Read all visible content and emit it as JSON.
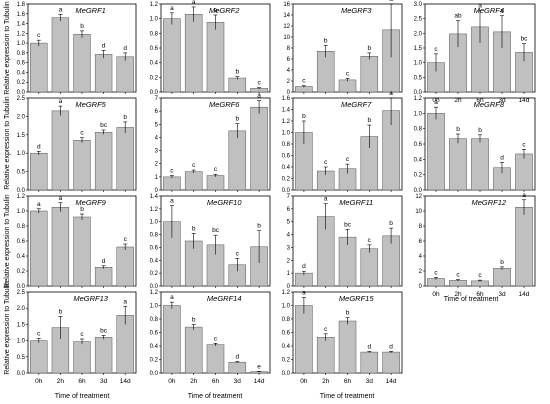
{
  "y_axis_label": "Relative expression to Tubulin",
  "x_axis_label": "Time of treatment",
  "chart_data": [
    {
      "type": "bar",
      "title": "MeGRF1",
      "categories": [
        "0h",
        "2h",
        "6h",
        "3d",
        "14d"
      ],
      "values": [
        1.0,
        1.52,
        1.18,
        0.77,
        0.72
      ],
      "errors": [
        0.06,
        0.07,
        0.07,
        0.08,
        0.08
      ],
      "letters": [
        "c",
        "a",
        "b",
        "d",
        "d"
      ],
      "ylim": [
        0,
        1.8
      ],
      "yticks": [
        "0.0",
        "0.2",
        "0.4",
        "0.6",
        "0.8",
        "1.0",
        "1.2",
        "1.4",
        "1.6",
        "1.8"
      ],
      "show_x_labels": false
    },
    {
      "type": "bar",
      "title": "MeGRF2",
      "categories": [
        "0h",
        "2h",
        "6h",
        "3d",
        "14d"
      ],
      "values": [
        1.0,
        1.06,
        0.95,
        0.19,
        0.05
      ],
      "errors": [
        0.08,
        0.1,
        0.1,
        0.02,
        0.01
      ],
      "letters": [
        "a",
        "a",
        "a",
        "b",
        "c"
      ],
      "ylim": [
        0,
        1.2
      ],
      "yticks": [
        "0.0",
        "0.2",
        "0.4",
        "0.6",
        "0.8",
        "1.0",
        "1.2"
      ],
      "show_x_labels": false
    },
    {
      "type": "bar",
      "title": "MeGRF3",
      "categories": [
        "0h",
        "2h",
        "6h",
        "3d",
        "14d"
      ],
      "values": [
        1.0,
        7.4,
        2.2,
        6.5,
        11.3
      ],
      "errors": [
        0.15,
        1.1,
        0.3,
        0.6,
        5.0
      ],
      "letters": [
        "c",
        "b",
        "c",
        "b",
        "a"
      ],
      "ylim": [
        0,
        16
      ],
      "yticks": [
        "0",
        "2",
        "4",
        "6",
        "8",
        "10",
        "12",
        "14",
        "16"
      ],
      "show_x_labels": false
    },
    {
      "type": "bar",
      "title": "MeGRF4",
      "categories": [
        "0h",
        "2h",
        "6h",
        "3d",
        "14d"
      ],
      "values": [
        1.0,
        1.98,
        2.22,
        2.05,
        1.35
      ],
      "errors": [
        0.3,
        0.45,
        0.55,
        0.55,
        0.3
      ],
      "letters": [
        "c",
        "ab",
        "a",
        "a",
        "bc"
      ],
      "ylim": [
        0,
        3.0
      ],
      "yticks": [
        "0.0",
        "0.5",
        "1.0",
        "1.5",
        "2.0",
        "2.5",
        "3.0"
      ],
      "show_x_labels": true
    },
    {
      "type": "bar",
      "title": "MeGRF5",
      "categories": [
        "0h",
        "2h",
        "6h",
        "3d",
        "14d"
      ],
      "values": [
        1.0,
        2.15,
        1.35,
        1.57,
        1.7
      ],
      "errors": [
        0.05,
        0.13,
        0.07,
        0.06,
        0.15
      ],
      "letters": [
        "d",
        "a",
        "c",
        "bc",
        "b"
      ],
      "ylim": [
        0,
        2.5
      ],
      "yticks": [
        "0.0",
        "0.5",
        "1.0",
        "1.5",
        "2.0",
        "2.5"
      ],
      "show_x_labels": false
    },
    {
      "type": "bar",
      "title": "MeGRF6",
      "categories": [
        "0h",
        "2h",
        "6h",
        "3d",
        "14d"
      ],
      "values": [
        1.0,
        1.4,
        1.1,
        4.5,
        6.3
      ],
      "errors": [
        0.1,
        0.12,
        0.1,
        0.55,
        0.5
      ],
      "letters": [
        "c",
        "c",
        "c",
        "b",
        "a"
      ],
      "ylim": [
        0,
        7
      ],
      "yticks": [
        "0",
        "1",
        "2",
        "3",
        "4",
        "5",
        "6",
        "7"
      ],
      "show_x_labels": false
    },
    {
      "type": "bar",
      "title": "MeGRF7",
      "categories": [
        "0h",
        "2h",
        "6h",
        "3d",
        "14d"
      ],
      "values": [
        1.0,
        0.33,
        0.37,
        0.93,
        1.38
      ],
      "errors": [
        0.2,
        0.07,
        0.08,
        0.2,
        0.25
      ],
      "letters": [
        "b",
        "c",
        "c",
        "b",
        "a"
      ],
      "ylim": [
        0,
        1.6
      ],
      "yticks": [
        "0.0",
        "0.2",
        "0.4",
        "0.6",
        "0.8",
        "1.0",
        "1.2",
        "1.4",
        "1.6"
      ],
      "show_x_labels": false
    },
    {
      "type": "bar",
      "title": "MeGRF8",
      "categories": [
        "0h",
        "2h",
        "6h",
        "3d",
        "14d"
      ],
      "values": [
        1.0,
        0.67,
        0.67,
        0.29,
        0.47
      ],
      "errors": [
        0.08,
        0.06,
        0.05,
        0.07,
        0.06
      ],
      "letters": [
        "a",
        "b",
        "b",
        "d",
        "c"
      ],
      "ylim": [
        0,
        1.2
      ],
      "yticks": [
        "0.0",
        "0.2",
        "0.4",
        "0.6",
        "0.8",
        "1.0",
        "1.2"
      ],
      "show_x_labels": false
    },
    {
      "type": "bar",
      "title": "MeGRF9",
      "categories": [
        "0h",
        "2h",
        "6h",
        "3d",
        "14d"
      ],
      "values": [
        1.0,
        1.05,
        0.92,
        0.25,
        0.52
      ],
      "errors": [
        0.03,
        0.06,
        0.04,
        0.02,
        0.04
      ],
      "letters": [
        "a",
        "a",
        "b",
        "d",
        "c"
      ],
      "ylim": [
        0,
        1.2
      ],
      "yticks": [
        "0.0",
        "0.2",
        "0.4",
        "0.6",
        "0.8",
        "1.0",
        "1.2"
      ],
      "show_x_labels": false
    },
    {
      "type": "bar",
      "title": "MeGRF10",
      "categories": [
        "0h",
        "2h",
        "6h",
        "3d",
        "14d"
      ],
      "values": [
        1.0,
        0.7,
        0.64,
        0.33,
        0.61
      ],
      "errors": [
        0.25,
        0.12,
        0.15,
        0.1,
        0.25
      ],
      "letters": [
        "a",
        "b",
        "bc",
        "c",
        "b"
      ],
      "ylim": [
        0,
        1.4
      ],
      "yticks": [
        "0.0",
        "0.2",
        "0.4",
        "0.6",
        "0.8",
        "1.0",
        "1.2",
        "1.4"
      ],
      "show_x_labels": false
    },
    {
      "type": "bar",
      "title": "MeGRF11",
      "categories": [
        "0h",
        "2h",
        "6h",
        "3d",
        "14d"
      ],
      "values": [
        1.0,
        5.4,
        3.8,
        2.9,
        3.9
      ],
      "errors": [
        0.15,
        1.0,
        0.6,
        0.3,
        0.6
      ],
      "letters": [
        "d",
        "a",
        "bc",
        "c",
        "b"
      ],
      "ylim": [
        0,
        7
      ],
      "yticks": [
        "0",
        "1",
        "2",
        "3",
        "4",
        "5",
        "6",
        "7"
      ],
      "show_x_labels": false
    },
    {
      "type": "bar",
      "title": "MeGRF12",
      "categories": [
        "0h",
        "2h",
        "6h",
        "3d",
        "14d"
      ],
      "values": [
        1.0,
        0.75,
        0.68,
        2.35,
        10.5
      ],
      "errors": [
        0.15,
        0.1,
        0.1,
        0.2,
        1.0
      ],
      "letters": [
        "c",
        "c",
        "c",
        "b",
        "a"
      ],
      "ylim": [
        0,
        12
      ],
      "yticks": [
        "0",
        "2",
        "4",
        "6",
        "8",
        "10",
        "12"
      ],
      "show_x_labels": true
    },
    {
      "type": "bar",
      "title": "MeGRF13",
      "categories": [
        "0h",
        "2h",
        "6h",
        "3d",
        "14d"
      ],
      "values": [
        1.0,
        1.4,
        0.97,
        1.1,
        1.78
      ],
      "errors": [
        0.07,
        0.35,
        0.08,
        0.06,
        0.28
      ],
      "letters": [
        "c",
        "b",
        "c",
        "bc",
        "a"
      ],
      "ylim": [
        0,
        2.5
      ],
      "yticks": [
        "0.0",
        "0.5",
        "1.0",
        "1.5",
        "2.0",
        "2.5"
      ],
      "show_x_labels": true
    },
    {
      "type": "bar",
      "title": "MeGRF14",
      "categories": [
        "0h",
        "2h",
        "6h",
        "3d",
        "14d"
      ],
      "values": [
        1.0,
        0.68,
        0.42,
        0.16,
        0.02
      ],
      "errors": [
        0.05,
        0.04,
        0.02,
        0.01,
        0.005
      ],
      "letters": [
        "a",
        "b",
        "c",
        "d",
        "e"
      ],
      "ylim": [
        0,
        1.2
      ],
      "yticks": [
        "0.0",
        "0.2",
        "0.4",
        "0.6",
        "0.8",
        "1.0",
        "1.2"
      ],
      "show_x_labels": true
    },
    {
      "type": "bar",
      "title": "MeGRF15",
      "categories": [
        "0h",
        "2h",
        "6h",
        "3d",
        "14d"
      ],
      "values": [
        1.0,
        0.53,
        0.77,
        0.31,
        0.31
      ],
      "errors": [
        0.12,
        0.05,
        0.05,
        0.01,
        0.01
      ],
      "letters": [
        "a",
        "c",
        "b",
        "d",
        "d"
      ],
      "ylim": [
        0,
        1.2
      ],
      "yticks": [
        "0.0",
        "0.2",
        "0.4",
        "0.6",
        "0.8",
        "1.0",
        "1.2"
      ],
      "show_x_labels": true
    }
  ]
}
